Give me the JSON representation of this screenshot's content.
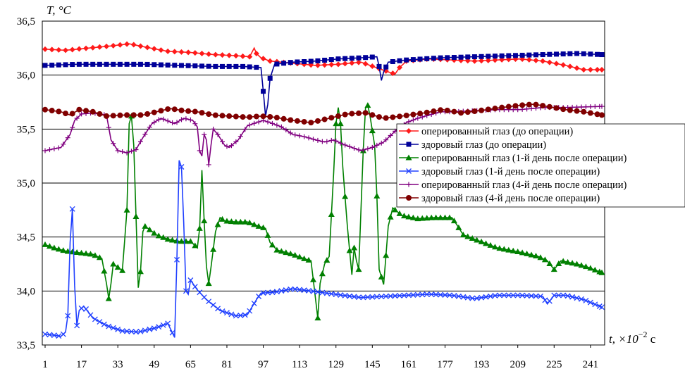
{
  "chart_data": {
    "type": "line",
    "title": "",
    "ylabel": "T, °C",
    "xlabel_prefix": "t, ×10",
    "xlabel_exp": "−2",
    "xlabel_unit": " с",
    "ylim": [
      33.5,
      36.5
    ],
    "xlim": [
      1,
      246
    ],
    "y_ticks": [
      "33,5",
      "34,0",
      "34,5",
      "35,0",
      "35,5",
      "36,0",
      "36,5"
    ],
    "y_tick_values": [
      33.5,
      34.0,
      34.5,
      35.0,
      35.5,
      36.0,
      36.5
    ],
    "x_ticks": [
      "1",
      "17",
      "33",
      "49",
      "65",
      "81",
      "97",
      "113",
      "129",
      "145",
      "161",
      "177",
      "193",
      "209",
      "225",
      "241"
    ],
    "x_tick_values": [
      1,
      17,
      33,
      49,
      65,
      81,
      97,
      113,
      129,
      145,
      161,
      177,
      193,
      209,
      225,
      241
    ],
    "grid": "horizontal",
    "legend_position": "right",
    "series": [
      {
        "name": "оперированный глаз (до операции)",
        "color": "#ff1a1a",
        "marker": "diamond",
        "points": [
          [
            1,
            36.24
          ],
          [
            10,
            36.23
          ],
          [
            20,
            36.25
          ],
          [
            30,
            36.27
          ],
          [
            38,
            36.29
          ],
          [
            45,
            36.26
          ],
          [
            55,
            36.22
          ],
          [
            65,
            36.21
          ],
          [
            75,
            36.19
          ],
          [
            85,
            36.18
          ],
          [
            91,
            36.17
          ],
          [
            93,
            36.25
          ],
          [
            94,
            36.2
          ],
          [
            96,
            36.16
          ],
          [
            100,
            36.13
          ],
          [
            110,
            36.11
          ],
          [
            120,
            36.09
          ],
          [
            130,
            36.1
          ],
          [
            140,
            36.12
          ],
          [
            148,
            36.06
          ],
          [
            152,
            36.03
          ],
          [
            155,
            36.01
          ],
          [
            157,
            36.07
          ],
          [
            160,
            36.13
          ],
          [
            170,
            36.15
          ],
          [
            180,
            36.14
          ],
          [
            190,
            36.13
          ],
          [
            200,
            36.14
          ],
          [
            210,
            36.15
          ],
          [
            220,
            36.13
          ],
          [
            230,
            36.09
          ],
          [
            238,
            36.05
          ],
          [
            246,
            36.05
          ]
        ]
      },
      {
        "name": "здоровый глаз (до операции)",
        "color": "#000099",
        "marker": "square",
        "points": [
          [
            1,
            36.09
          ],
          [
            15,
            36.1
          ],
          [
            30,
            36.1
          ],
          [
            45,
            36.1
          ],
          [
            60,
            36.09
          ],
          [
            75,
            36.08
          ],
          [
            88,
            36.08
          ],
          [
            96,
            36.07
          ],
          [
            97,
            35.85
          ],
          [
            98,
            35.62
          ],
          [
            99,
            35.73
          ],
          [
            100,
            35.97
          ],
          [
            102,
            36.1
          ],
          [
            110,
            36.12
          ],
          [
            120,
            36.13
          ],
          [
            130,
            36.15
          ],
          [
            140,
            36.16
          ],
          [
            147,
            36.17
          ],
          [
            148,
            36.08
          ],
          [
            149,
            35.95
          ],
          [
            150,
            36.03
          ],
          [
            152,
            36.12
          ],
          [
            160,
            36.14
          ],
          [
            175,
            36.16
          ],
          [
            190,
            36.17
          ],
          [
            205,
            36.18
          ],
          [
            220,
            36.19
          ],
          [
            235,
            36.2
          ],
          [
            246,
            36.19
          ]
        ]
      },
      {
        "name": "оперированный глаз (1-й день после операции)",
        "color": "#008000",
        "marker": "triangle",
        "points": [
          [
            1,
            34.43
          ],
          [
            5,
            34.4
          ],
          [
            10,
            34.37
          ],
          [
            18,
            34.35
          ],
          [
            22,
            34.34
          ],
          [
            26,
            34.3
          ],
          [
            28,
            34.07
          ],
          [
            29,
            33.93
          ],
          [
            30,
            34.07
          ],
          [
            31,
            34.25
          ],
          [
            33,
            34.22
          ],
          [
            35,
            34.19
          ],
          [
            37,
            34.75
          ],
          [
            38,
            35.55
          ],
          [
            39,
            35.62
          ],
          [
            40,
            35.35
          ],
          [
            42,
            34.03
          ],
          [
            43,
            34.18
          ],
          [
            44,
            34.55
          ],
          [
            45,
            34.6
          ],
          [
            50,
            34.52
          ],
          [
            55,
            34.48
          ],
          [
            60,
            34.46
          ],
          [
            65,
            34.46
          ],
          [
            68,
            34.4
          ],
          [
            69,
            34.58
          ],
          [
            70,
            35.12
          ],
          [
            71,
            34.65
          ],
          [
            72,
            34.23
          ],
          [
            73,
            34.07
          ],
          [
            74,
            34.22
          ],
          [
            76,
            34.55
          ],
          [
            78,
            34.68
          ],
          [
            80,
            34.65
          ],
          [
            85,
            34.64
          ],
          [
            90,
            34.64
          ],
          [
            95,
            34.6
          ],
          [
            98,
            34.58
          ],
          [
            100,
            34.45
          ],
          [
            103,
            34.38
          ],
          [
            110,
            34.34
          ],
          [
            115,
            34.3
          ],
          [
            118,
            34.28
          ],
          [
            120,
            33.93
          ],
          [
            121,
            33.75
          ],
          [
            122,
            34.07
          ],
          [
            124,
            34.25
          ],
          [
            126,
            34.32
          ],
          [
            128,
            35.1
          ],
          [
            129,
            35.55
          ],
          [
            130,
            35.7
          ],
          [
            131,
            35.55
          ],
          [
            132,
            35.15
          ],
          [
            134,
            34.6
          ],
          [
            136,
            34.15
          ],
          [
            137,
            34.4
          ],
          [
            138,
            34.28
          ],
          [
            139,
            34.2
          ],
          [
            141,
            35.3
          ],
          [
            142,
            35.7
          ],
          [
            143,
            35.72
          ],
          [
            144,
            35.62
          ],
          [
            146,
            35.35
          ],
          [
            147,
            34.88
          ],
          [
            148,
            34.2
          ],
          [
            150,
            34.06
          ],
          [
            152,
            34.6
          ],
          [
            154,
            34.77
          ],
          [
            158,
            34.7
          ],
          [
            165,
            34.67
          ],
          [
            172,
            34.68
          ],
          [
            180,
            34.68
          ],
          [
            182,
            34.62
          ],
          [
            185,
            34.52
          ],
          [
            190,
            34.48
          ],
          [
            200,
            34.4
          ],
          [
            210,
            34.36
          ],
          [
            218,
            34.32
          ],
          [
            222,
            34.28
          ],
          [
            225,
            34.2
          ],
          [
            228,
            34.28
          ],
          [
            235,
            34.25
          ],
          [
            240,
            34.22
          ],
          [
            246,
            34.17
          ]
        ]
      },
      {
        "name": "здоровый глаз (1-й день после операции)",
        "color": "#2040ff",
        "marker": "x",
        "points": [
          [
            1,
            33.6
          ],
          [
            5,
            33.59
          ],
          [
            8,
            33.58
          ],
          [
            10,
            33.62
          ],
          [
            11,
            33.77
          ],
          [
            12,
            34.45
          ],
          [
            13,
            34.76
          ],
          [
            14,
            34.05
          ],
          [
            15,
            33.68
          ],
          [
            16,
            33.82
          ],
          [
            18,
            33.86
          ],
          [
            22,
            33.75
          ],
          [
            28,
            33.68
          ],
          [
            35,
            33.63
          ],
          [
            42,
            33.62
          ],
          [
            50,
            33.66
          ],
          [
            55,
            33.7
          ],
          [
            58,
            33.57
          ],
          [
            59,
            34.29
          ],
          [
            60,
            35.21
          ],
          [
            61,
            35.15
          ],
          [
            62,
            34.63
          ],
          [
            63,
            34.0
          ],
          [
            64,
            33.97
          ],
          [
            65,
            34.1
          ],
          [
            68,
            34.01
          ],
          [
            72,
            33.92
          ],
          [
            78,
            33.82
          ],
          [
            85,
            33.77
          ],
          [
            90,
            33.78
          ],
          [
            94,
            33.92
          ],
          [
            96,
            33.98
          ],
          [
            102,
            33.99
          ],
          [
            110,
            34.02
          ],
          [
            118,
            34.0
          ],
          [
            125,
            33.98
          ],
          [
            132,
            33.96
          ],
          [
            140,
            33.94
          ],
          [
            150,
            33.95
          ],
          [
            160,
            33.96
          ],
          [
            170,
            33.97
          ],
          [
            180,
            33.96
          ],
          [
            190,
            33.93
          ],
          [
            200,
            33.96
          ],
          [
            210,
            33.96
          ],
          [
            220,
            33.95
          ],
          [
            222,
            33.88
          ],
          [
            225,
            33.96
          ],
          [
            230,
            33.96
          ],
          [
            238,
            33.92
          ],
          [
            246,
            33.85
          ]
        ]
      },
      {
        "name": "оперированный глаз (4-й день после операции)",
        "color": "#800080",
        "marker": "plus",
        "points": [
          [
            1,
            35.3
          ],
          [
            8,
            35.33
          ],
          [
            12,
            35.45
          ],
          [
            14,
            35.58
          ],
          [
            17,
            35.64
          ],
          [
            22,
            35.65
          ],
          [
            28,
            35.63
          ],
          [
            30,
            35.4
          ],
          [
            33,
            35.3
          ],
          [
            37,
            35.28
          ],
          [
            41,
            35.31
          ],
          [
            44,
            35.42
          ],
          [
            48,
            35.55
          ],
          [
            52,
            35.6
          ],
          [
            58,
            35.55
          ],
          [
            62,
            35.6
          ],
          [
            66,
            35.58
          ],
          [
            68,
            35.52
          ],
          [
            69,
            35.3
          ],
          [
            70,
            35.25
          ],
          [
            71,
            35.45
          ],
          [
            72,
            35.4
          ],
          [
            73,
            35.17
          ],
          [
            74,
            35.35
          ],
          [
            75,
            35.5
          ],
          [
            77,
            35.45
          ],
          [
            80,
            35.35
          ],
          [
            82,
            35.33
          ],
          [
            86,
            35.4
          ],
          [
            90,
            35.53
          ],
          [
            94,
            35.56
          ],
          [
            97,
            35.58
          ],
          [
            100,
            35.56
          ],
          [
            105,
            35.52
          ],
          [
            110,
            35.45
          ],
          [
            115,
            35.43
          ],
          [
            120,
            35.4
          ],
          [
            124,
            35.38
          ],
          [
            128,
            35.4
          ],
          [
            132,
            35.36
          ],
          [
            136,
            35.33
          ],
          [
            140,
            35.3
          ],
          [
            145,
            35.33
          ],
          [
            150,
            35.38
          ],
          [
            155,
            35.48
          ],
          [
            160,
            35.56
          ],
          [
            165,
            35.6
          ],
          [
            170,
            35.63
          ],
          [
            175,
            35.66
          ],
          [
            180,
            35.66
          ],
          [
            190,
            35.67
          ],
          [
            200,
            35.68
          ],
          [
            210,
            35.68
          ],
          [
            220,
            35.7
          ],
          [
            230,
            35.7
          ],
          [
            246,
            35.71
          ]
        ]
      },
      {
        "name": "здоровый глаз (4-й день после операции)",
        "color": "#800000",
        "marker": "circle",
        "points": [
          [
            1,
            35.68
          ],
          [
            8,
            35.66
          ],
          [
            12,
            35.63
          ],
          [
            16,
            35.68
          ],
          [
            22,
            35.66
          ],
          [
            28,
            35.62
          ],
          [
            36,
            35.63
          ],
          [
            44,
            35.63
          ],
          [
            50,
            35.66
          ],
          [
            56,
            35.69
          ],
          [
            62,
            35.67
          ],
          [
            68,
            35.66
          ],
          [
            75,
            35.63
          ],
          [
            82,
            35.62
          ],
          [
            90,
            35.61
          ],
          [
            96,
            35.62
          ],
          [
            102,
            35.61
          ],
          [
            110,
            35.58
          ],
          [
            118,
            35.56
          ],
          [
            126,
            35.6
          ],
          [
            134,
            35.64
          ],
          [
            142,
            35.65
          ],
          [
            150,
            35.6
          ],
          [
            158,
            35.62
          ],
          [
            168,
            35.65
          ],
          [
            176,
            35.68
          ],
          [
            184,
            35.65
          ],
          [
            192,
            35.67
          ],
          [
            202,
            35.7
          ],
          [
            210,
            35.72
          ],
          [
            216,
            35.73
          ],
          [
            222,
            35.71
          ],
          [
            230,
            35.68
          ],
          [
            238,
            35.66
          ],
          [
            246,
            35.63
          ]
        ]
      }
    ]
  }
}
